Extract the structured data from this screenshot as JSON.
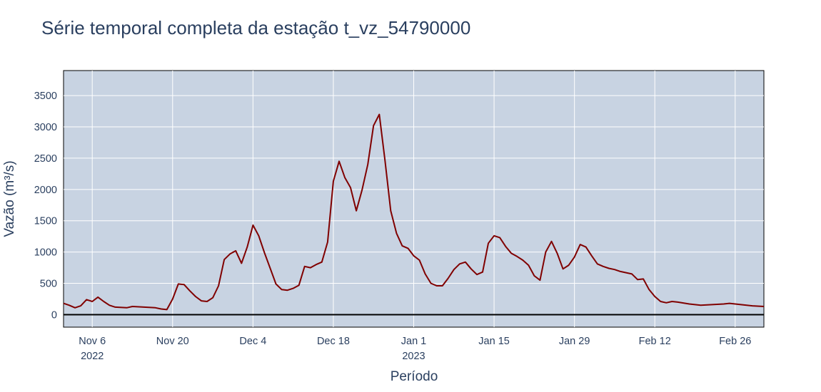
{
  "chart_data": {
    "type": "line",
    "title": "Série temporal completa da estação t_vz_54790000",
    "xlabel": "Período",
    "ylabel": "Vazão (m³/s)",
    "x_start": "2022-11-01",
    "x_end": "2023-03-03",
    "ylim": [
      -200,
      3900
    ],
    "yticks": [
      0,
      500,
      1000,
      1500,
      2000,
      2500,
      3000,
      3500
    ],
    "xticks": [
      {
        "date": "2022-11-06",
        "label": "Nov 6",
        "sublabel": "2022"
      },
      {
        "date": "2022-11-20",
        "label": "Nov 20",
        "sublabel": ""
      },
      {
        "date": "2022-12-04",
        "label": "Dec 4",
        "sublabel": ""
      },
      {
        "date": "2022-12-18",
        "label": "Dec 18",
        "sublabel": ""
      },
      {
        "date": "2023-01-01",
        "label": "Jan 1",
        "sublabel": "2023"
      },
      {
        "date": "2023-01-15",
        "label": "Jan 15",
        "sublabel": ""
      },
      {
        "date": "2023-01-29",
        "label": "Jan 29",
        "sublabel": ""
      },
      {
        "date": "2023-02-12",
        "label": "Feb 12",
        "sublabel": ""
      },
      {
        "date": "2023-02-26",
        "label": "Feb 26",
        "sublabel": ""
      }
    ],
    "grid": true,
    "background_color": "#c8d3e2",
    "line_color": "#800000",
    "series": [
      {
        "x": [
          "2022-11-01",
          "2022-11-02",
          "2022-11-03",
          "2022-11-04",
          "2022-11-05",
          "2022-11-06",
          "2022-11-07",
          "2022-11-08",
          "2022-11-09",
          "2022-11-10",
          "2022-11-12",
          "2022-11-13",
          "2022-11-15",
          "2022-11-17",
          "2022-11-18",
          "2022-11-19",
          "2022-11-20",
          "2022-11-21",
          "2022-11-22",
          "2022-11-23",
          "2022-11-24",
          "2022-11-25",
          "2022-11-26",
          "2022-11-27",
          "2022-11-28",
          "2022-11-29",
          "2022-11-30",
          "2022-12-01",
          "2022-12-02",
          "2022-12-03",
          "2022-12-04",
          "2022-12-05",
          "2022-12-06",
          "2022-12-07",
          "2022-12-08",
          "2022-12-09",
          "2022-12-10",
          "2022-12-11",
          "2022-12-12",
          "2022-12-13",
          "2022-12-14",
          "2022-12-15",
          "2022-12-16",
          "2022-12-17",
          "2022-12-18",
          "2022-12-19",
          "2022-12-20",
          "2022-12-21",
          "2022-12-22",
          "2022-12-23",
          "2022-12-24",
          "2022-12-25",
          "2022-12-26",
          "2022-12-27",
          "2022-12-28",
          "2022-12-29",
          "2022-12-30",
          "2022-12-31",
          "2023-01-01",
          "2023-01-02",
          "2023-01-03",
          "2023-01-04",
          "2023-01-05",
          "2023-01-06",
          "2023-01-07",
          "2023-01-08",
          "2023-01-09",
          "2023-01-10",
          "2023-01-11",
          "2023-01-12",
          "2023-01-13",
          "2023-01-14",
          "2023-01-15",
          "2023-01-16",
          "2023-01-17",
          "2023-01-18",
          "2023-01-19",
          "2023-01-20",
          "2023-01-21",
          "2023-01-22",
          "2023-01-23",
          "2023-01-24",
          "2023-01-25",
          "2023-01-26",
          "2023-01-27",
          "2023-01-28",
          "2023-01-29",
          "2023-01-30",
          "2023-01-31",
          "2023-02-01",
          "2023-02-02",
          "2023-02-03",
          "2023-02-04",
          "2023-02-05",
          "2023-02-06",
          "2023-02-07",
          "2023-02-08",
          "2023-02-09",
          "2023-02-10",
          "2023-02-11",
          "2023-02-12",
          "2023-02-13",
          "2023-02-14",
          "2023-02-15",
          "2023-02-16",
          "2023-02-18",
          "2023-02-20",
          "2023-02-22",
          "2023-02-24",
          "2023-02-25",
          "2023-02-27",
          "2023-03-01",
          "2023-03-03"
        ],
        "y": [
          180,
          150,
          110,
          140,
          240,
          210,
          280,
          210,
          150,
          120,
          110,
          130,
          120,
          110,
          90,
          80,
          250,
          490,
          480,
          380,
          290,
          220,
          210,
          270,
          460,
          880,
          970,
          1020,
          820,
          1080,
          1430,
          1260,
          990,
          740,
          490,
          400,
          390,
          420,
          470,
          770,
          750,
          800,
          840,
          1160,
          2130,
          2450,
          2190,
          2030,
          1660,
          1990,
          2400,
          3020,
          3200,
          2460,
          1660,
          1300,
          1100,
          1060,
          940,
          870,
          650,
          500,
          460,
          460,
          580,
          720,
          810,
          840,
          730,
          640,
          680,
          1140,
          1260,
          1230,
          1090,
          980,
          930,
          870,
          790,
          620,
          550,
          1000,
          1170,
          980,
          730,
          790,
          920,
          1120,
          1080,
          940,
          810,
          770,
          740,
          720,
          690,
          670,
          650,
          560,
          570,
          400,
          290,
          210,
          190,
          210,
          200,
          170,
          150,
          160,
          170,
          180,
          160,
          140,
          130
        ]
      }
    ]
  }
}
